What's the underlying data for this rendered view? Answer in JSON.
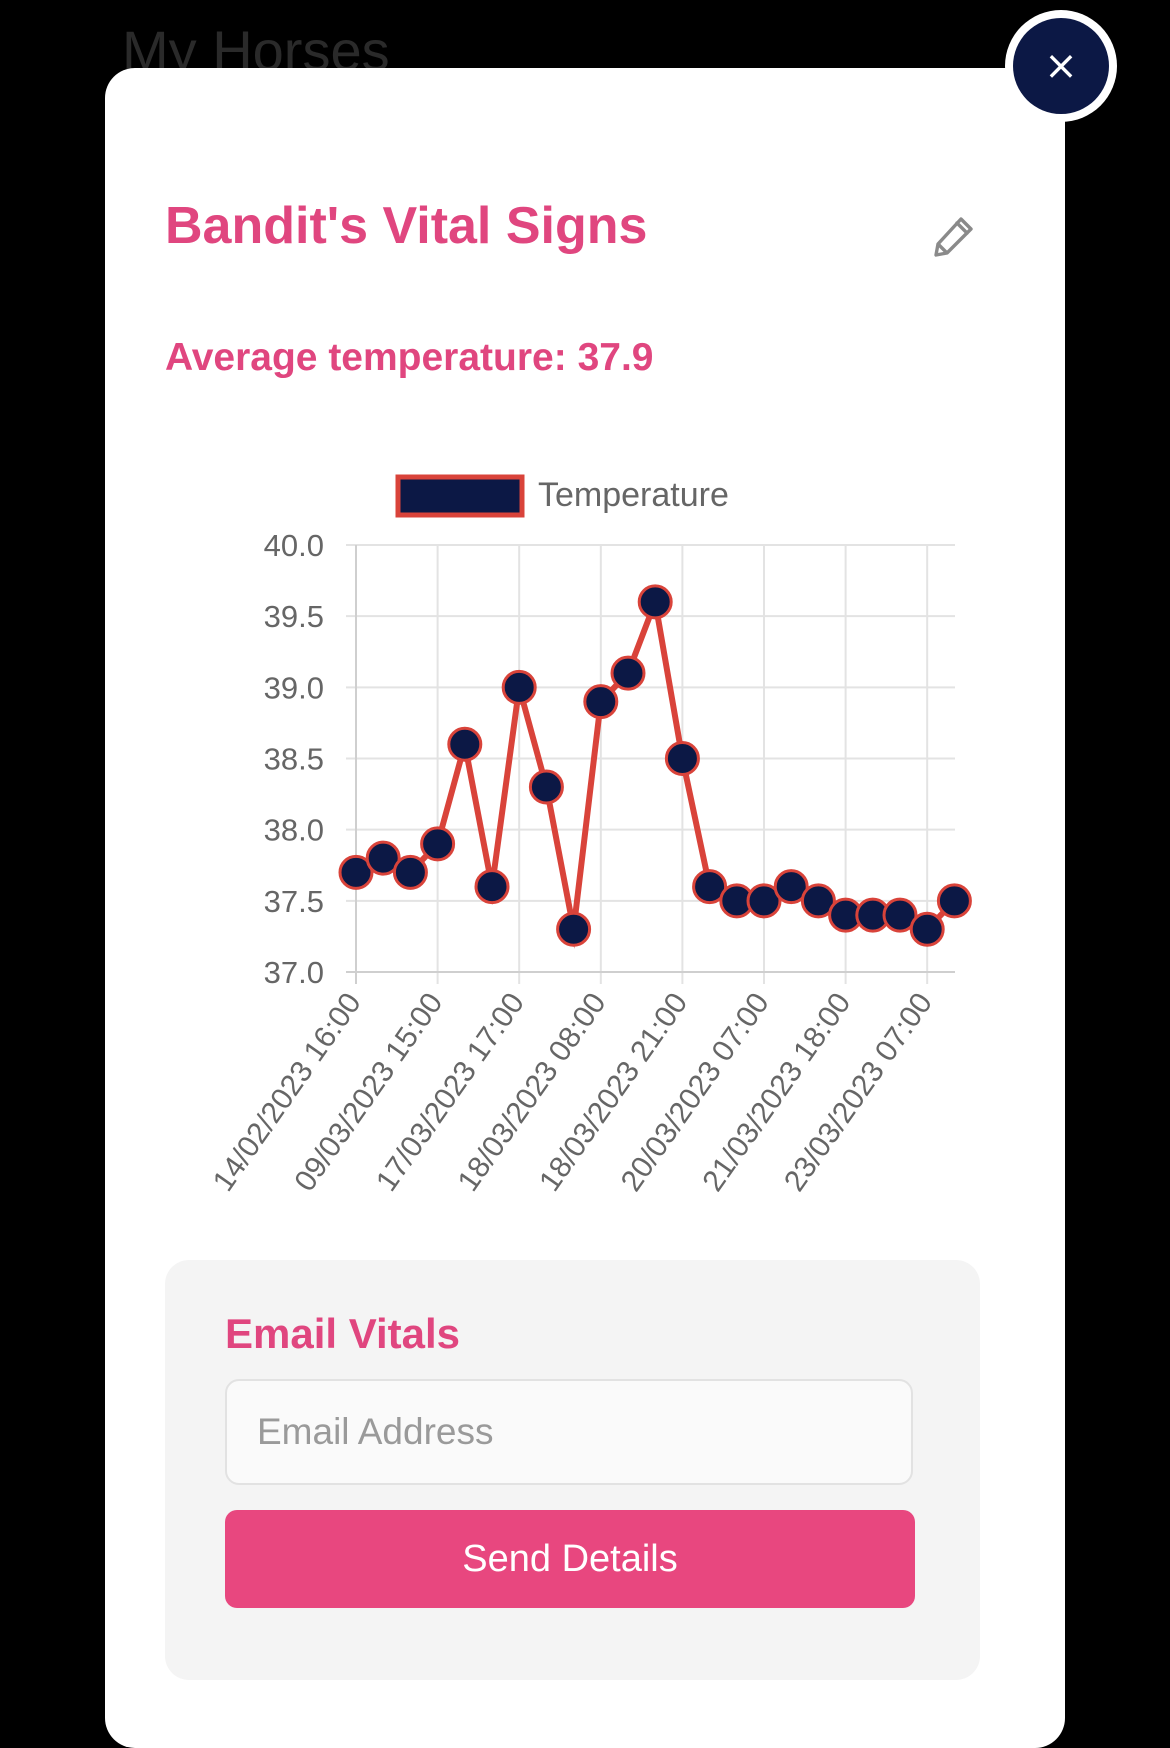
{
  "page": {
    "background_title": "My Horses"
  },
  "modal": {
    "title": "Bandit's Vital Signs",
    "edit_icon": "pencil-icon",
    "close_label": "×",
    "close_icon": "close-icon",
    "average_label": "Average temperature:",
    "average_value": "37.9"
  },
  "colors": {
    "accent": "#e0467f",
    "button": "#e8477f",
    "navy": "#0c1845",
    "line": "#d9433a"
  },
  "chart_data": {
    "type": "line",
    "title": "",
    "xlabel": "",
    "ylabel": "",
    "ylim": [
      37.0,
      40.0
    ],
    "y_ticks": [
      "40.0",
      "39.5",
      "39.0",
      "38.5",
      "38.0",
      "37.5",
      "37.0"
    ],
    "x_tick_labels": [
      "14/02/2023 16:00",
      "09/03/2023 15:00",
      "17/03/2023 17:00",
      "18/03/2023 08:00",
      "18/03/2023 21:00",
      "20/03/2023 07:00",
      "21/03/2023 18:00",
      "23/03/2023 07:00"
    ],
    "legend": {
      "position": "top",
      "entries": [
        "Temperature"
      ]
    },
    "grid": true,
    "series": [
      {
        "name": "Temperature",
        "line_color": "#d9433a",
        "point_color": "#0c1845",
        "values": [
          37.7,
          37.8,
          37.7,
          37.9,
          38.6,
          37.6,
          39.0,
          38.3,
          37.3,
          38.9,
          39.1,
          39.6,
          38.5,
          37.6,
          37.5,
          37.5,
          37.6,
          37.5,
          37.4,
          37.4,
          37.4,
          37.3,
          37.5
        ]
      }
    ]
  },
  "email": {
    "title": "Email Vitals",
    "placeholder": "Email Address",
    "value": "",
    "button_label": "Send Details"
  }
}
